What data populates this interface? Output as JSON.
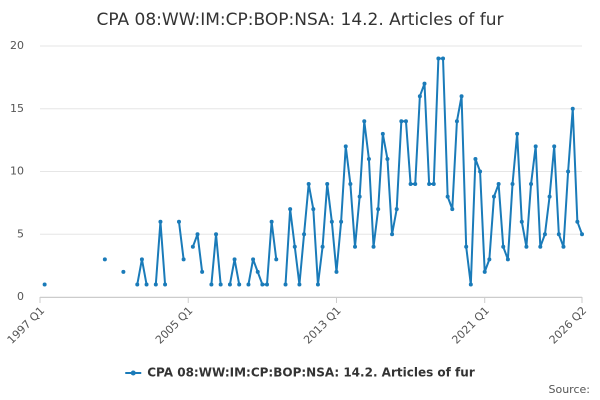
{
  "chart_data": {
    "type": "line",
    "title": "CPA 08:WW:IM:CP:BOP:NSA: 14.2. Articles of fur",
    "source": "Source:",
    "categories": [
      "1997 Q1",
      null,
      null,
      null,
      null,
      null,
      null,
      null,
      null,
      null,
      null,
      null,
      null,
      null,
      null,
      null,
      null,
      null,
      null,
      null,
      null,
      null,
      null,
      null,
      null,
      null,
      null,
      null,
      null,
      null,
      null,
      null,
      "2005 Q1",
      null,
      null,
      null,
      null,
      null,
      null,
      null,
      null,
      null,
      null,
      null,
      null,
      null,
      null,
      null,
      null,
      null,
      null,
      null,
      null,
      null,
      null,
      null,
      null,
      null,
      null,
      null,
      null,
      null,
      null,
      null,
      "2013 Q1",
      null,
      null,
      null,
      null,
      null,
      null,
      null,
      null,
      null,
      null,
      null,
      null,
      null,
      null,
      null,
      null,
      null,
      null,
      null,
      null,
      null,
      null,
      null,
      null,
      null,
      null,
      null,
      null,
      null,
      null,
      null,
      "2021 Q1",
      null,
      null,
      null,
      null,
      null,
      null,
      null,
      null,
      null,
      null,
      null,
      null,
      null,
      null,
      null,
      null,
      null,
      null,
      null,
      null,
      "2026 Q2"
    ],
    "series": [
      {
        "name": "CPA 08:WW:IM:CP:BOP:NSA: 14.2. Articles of fur",
        "color": "#1a7bb9",
        "values": [
          null,
          1,
          null,
          null,
          null,
          null,
          null,
          null,
          null,
          null,
          null,
          null,
          null,
          null,
          3,
          null,
          null,
          null,
          2,
          null,
          null,
          1,
          3,
          1,
          null,
          1,
          6,
          1,
          null,
          null,
          6,
          3,
          null,
          4,
          5,
          2,
          null,
          1,
          5,
          1,
          null,
          1,
          3,
          1,
          null,
          1,
          3,
          2,
          1,
          1,
          6,
          3,
          null,
          1,
          7,
          4,
          1,
          5,
          9,
          7,
          1,
          4,
          9,
          6,
          2,
          6,
          12,
          9,
          4,
          8,
          14,
          11,
          4,
          7,
          13,
          11,
          5,
          7,
          14,
          14,
          9,
          9,
          16,
          17,
          9,
          9,
          19,
          19,
          8,
          7,
          14,
          16,
          4,
          1,
          11,
          10,
          2,
          3,
          8,
          9,
          4,
          3,
          9,
          13,
          6,
          4,
          9,
          12,
          4,
          5,
          8,
          12,
          5,
          4,
          10,
          15,
          6,
          5
        ]
      }
    ],
    "ylim": [
      0,
      20
    ],
    "yticks": [
      0,
      5,
      10,
      15,
      20
    ],
    "grid": true,
    "legend": "bottom"
  }
}
